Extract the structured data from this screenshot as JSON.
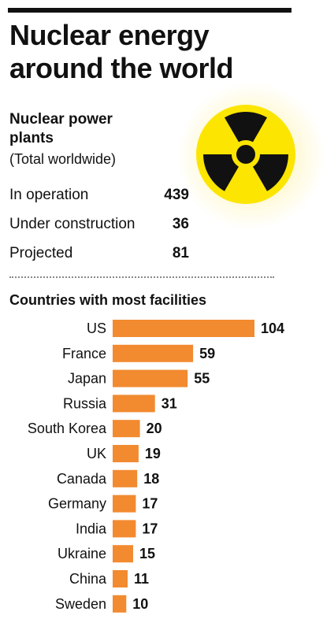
{
  "title": "Nuclear energy around the world",
  "subhead": "Nuclear power plants",
  "subnote": "(Total worldwide)",
  "stats": [
    {
      "label": "In operation",
      "value": "439"
    },
    {
      "label": "Under construction",
      "value": "36"
    },
    {
      "label": "Projected",
      "value": "81"
    }
  ],
  "colors": {
    "bar": "#F28A30",
    "symbol_yellow": "#FCE500",
    "symbol_black": "#111111"
  },
  "icons": {
    "hazard": "radiation-trefoil-icon"
  },
  "chart_data": {
    "type": "bar",
    "orientation": "horizontal",
    "title": "Countries with most facilities",
    "categories": [
      "US",
      "France",
      "Japan",
      "Russia",
      "South Korea",
      "UK",
      "Canada",
      "Germany",
      "India",
      "Ukraine",
      "China",
      "Sweden"
    ],
    "values": [
      104,
      59,
      55,
      31,
      20,
      19,
      18,
      17,
      17,
      15,
      11,
      10
    ],
    "data_labels": true,
    "grid": false,
    "xlabel": "",
    "ylabel": ""
  }
}
